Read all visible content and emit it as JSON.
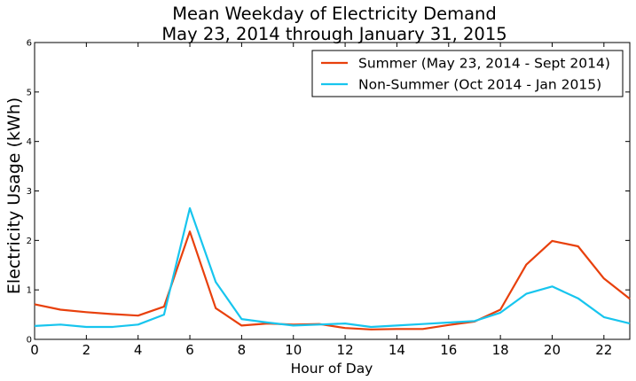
{
  "chart_data": {
    "type": "line",
    "title": [
      "Mean Weekday of Electricity Demand",
      "May 23, 2014 through January 31, 2015"
    ],
    "xlabel": "Hour of Day",
    "ylabel": "Electricity Usage (kWh)",
    "xlim": [
      0,
      23
    ],
    "ylim": [
      0,
      6
    ],
    "x_ticks": [
      0,
      2,
      4,
      6,
      8,
      10,
      12,
      14,
      16,
      18,
      20,
      22
    ],
    "y_ticks": [
      0,
      1,
      2,
      3,
      4,
      5,
      6
    ],
    "x_tick_labels": [
      "0",
      "2",
      "4",
      "6",
      "8",
      "10",
      "12",
      "14",
      "16",
      "18",
      "20",
      "22"
    ],
    "y_tick_labels": [
      "0",
      "1",
      "2",
      "3",
      "4",
      "5",
      "6"
    ],
    "grid": false,
    "legend_position": "top-right",
    "x": [
      0,
      1,
      2,
      3,
      4,
      5,
      6,
      7,
      8,
      9,
      10,
      11,
      12,
      13,
      14,
      15,
      16,
      17,
      18,
      19,
      20,
      21,
      22,
      23
    ],
    "series": [
      {
        "name": "Summer (May 23, 2014 - Sept 2014)",
        "color": "#e8400c",
        "values": [
          0.71,
          0.6,
          0.55,
          0.51,
          0.48,
          0.66,
          2.18,
          0.63,
          0.28,
          0.32,
          0.3,
          0.31,
          0.23,
          0.2,
          0.21,
          0.21,
          0.29,
          0.36,
          0.6,
          1.51,
          1.99,
          1.88,
          1.23,
          0.82
        ]
      },
      {
        "name": "Non-Summer (Oct 2014 - Jan 2015)",
        "color": "#17c5ee",
        "values": [
          0.27,
          0.3,
          0.25,
          0.25,
          0.3,
          0.5,
          2.65,
          1.16,
          0.41,
          0.34,
          0.28,
          0.3,
          0.32,
          0.25,
          0.28,
          0.31,
          0.34,
          0.37,
          0.54,
          0.92,
          1.07,
          0.83,
          0.45,
          0.32
        ]
      }
    ]
  }
}
